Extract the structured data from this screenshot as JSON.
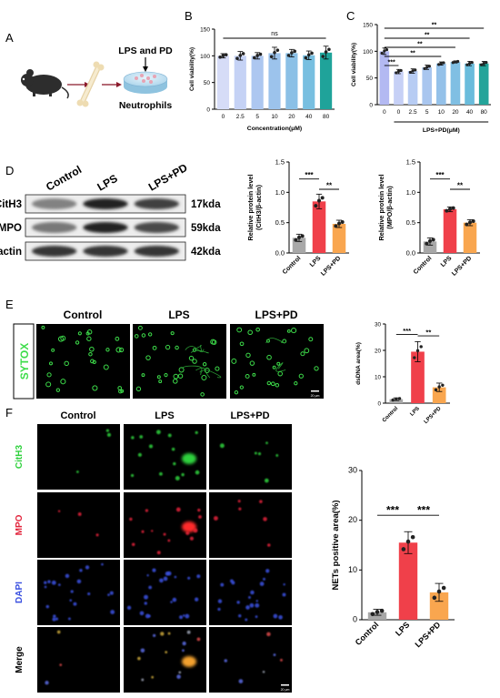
{
  "panel_letters": {
    "A": "A",
    "B": "B",
    "C": "C",
    "D": "D",
    "E": "E",
    "F": "F"
  },
  "panel_a": {
    "label_top": "LPS and PD",
    "label_bottom": "Neutrophils"
  },
  "colors": {
    "b_bars": [
      "#d6dcf7",
      "#c5d2f5",
      "#adc7f0",
      "#9cc3ec",
      "#8bc0e6",
      "#78bfe0",
      "#1fa39a"
    ],
    "c_bars": [
      "#b3b9f2",
      "#c6d0f6",
      "#b7ccf3",
      "#a9c6ef",
      "#94c1e9",
      "#80bfe3",
      "#6abcdc",
      "#24a49a"
    ],
    "grey": "#a8a8a8",
    "red": "#f0404a",
    "orange": "#f9a64f",
    "green": "#3ddc4a",
    "cith3": "#2fd13d",
    "mpo": "#e2223a",
    "dapi": "#3b51e0"
  },
  "chart_data": [
    {
      "id": "B",
      "type": "bar",
      "title": "",
      "categories": [
        "0",
        "2.5",
        "5",
        "10",
        "20",
        "40",
        "80"
      ],
      "values": [
        100,
        100,
        100,
        105,
        105,
        101,
        106
      ],
      "errors": [
        4,
        8,
        6,
        11,
        7,
        8,
        12
      ],
      "xlabel": "Concentration(μM)",
      "ylabel": "Cell viability(%)",
      "ylim": [
        0,
        150
      ],
      "yticks": [
        "0",
        "50",
        "100",
        "150"
      ],
      "annotation": "ns",
      "grid": false
    },
    {
      "id": "C",
      "type": "bar",
      "title": "",
      "categories": [
        "0",
        "0",
        "2.5",
        "5",
        "10",
        "20",
        "40",
        "80"
      ],
      "values": [
        100,
        62,
        63,
        70,
        77,
        80,
        77,
        77
      ],
      "errors": [
        6,
        4,
        4,
        4,
        3,
        2,
        4,
        4
      ],
      "xlabel": "",
      "group_label": "LPS+PD(μM)",
      "ylabel": "Cell viability(%)",
      "ylim": [
        0,
        150
      ],
      "yticks": [
        "0",
        "50",
        "100",
        "150"
      ],
      "significance": [
        "***",
        "**",
        "**",
        "**",
        "**"
      ],
      "grid": false
    },
    {
      "id": "D1",
      "type": "bar",
      "categories": [
        "Control",
        "LPS",
        "LPS+PD"
      ],
      "values": [
        0.25,
        0.85,
        0.48
      ],
      "errors": [
        0.06,
        0.12,
        0.06
      ],
      "ylabel_lines": [
        "Relative protein level",
        "(CitH3/β-actin)"
      ],
      "ylim": [
        0,
        1.5
      ],
      "yticks": [
        "0.0",
        "0.5",
        "1.0",
        "1.5"
      ],
      "significance": [
        "***",
        "**"
      ]
    },
    {
      "id": "D2",
      "type": "bar",
      "categories": [
        "Control",
        "LPS",
        "LPS+PD"
      ],
      "values": [
        0.19,
        0.72,
        0.5
      ],
      "errors": [
        0.06,
        0.04,
        0.05
      ],
      "ylabel_lines": [
        "Relative protein level",
        "(MPO/β-actin)"
      ],
      "ylim": [
        0,
        1.5
      ],
      "yticks": [
        "0.0",
        "0.5",
        "1.0",
        "1.5"
      ],
      "significance": [
        "***",
        "**"
      ]
    },
    {
      "id": "E",
      "type": "bar",
      "categories": [
        "Control",
        "LPS",
        "LPS+PD"
      ],
      "values": [
        1.5,
        19.5,
        6
      ],
      "errors": [
        0.5,
        3.8,
        1.6
      ],
      "ylabel": "dsDNA area(%)",
      "ylim": [
        0,
        30
      ],
      "yticks": [
        "0",
        "10",
        "20",
        "30"
      ],
      "significance": [
        "***",
        "**"
      ]
    },
    {
      "id": "F",
      "type": "bar",
      "categories": [
        "Control",
        "LPS",
        "LPS+PD"
      ],
      "values": [
        1.5,
        15.5,
        5.5
      ],
      "errors": [
        0.6,
        2.2,
        1.8
      ],
      "ylabel": "NETs positive area(%)",
      "ylim": [
        0,
        30
      ],
      "yticks": [
        "0",
        "10",
        "20",
        "30"
      ],
      "significance": [
        "***",
        "***"
      ]
    }
  ],
  "western_blot": {
    "columns": [
      "Control",
      "LPS",
      "LPS+PD"
    ],
    "bands": [
      {
        "name": "CitH3",
        "size": "17kda",
        "intensity": [
          0.45,
          0.95,
          0.8
        ]
      },
      {
        "name": "MPO",
        "size": "59kda",
        "intensity": [
          0.5,
          0.95,
          0.75
        ]
      },
      {
        "name": "β-actin",
        "size": "42kda",
        "intensity": [
          0.85,
          0.85,
          0.85
        ]
      }
    ]
  },
  "panel_e": {
    "stain": "SYTOX",
    "columns": [
      "Control",
      "LPS",
      "LPS+PD"
    ],
    "scale_bar": "20 μm"
  },
  "panel_f": {
    "columns": [
      "Control",
      "LPS",
      "LPS+PD"
    ],
    "rows": [
      "CitH3",
      "MPO",
      "DAPI",
      "Merge"
    ],
    "scale_bar": "20 μm"
  }
}
